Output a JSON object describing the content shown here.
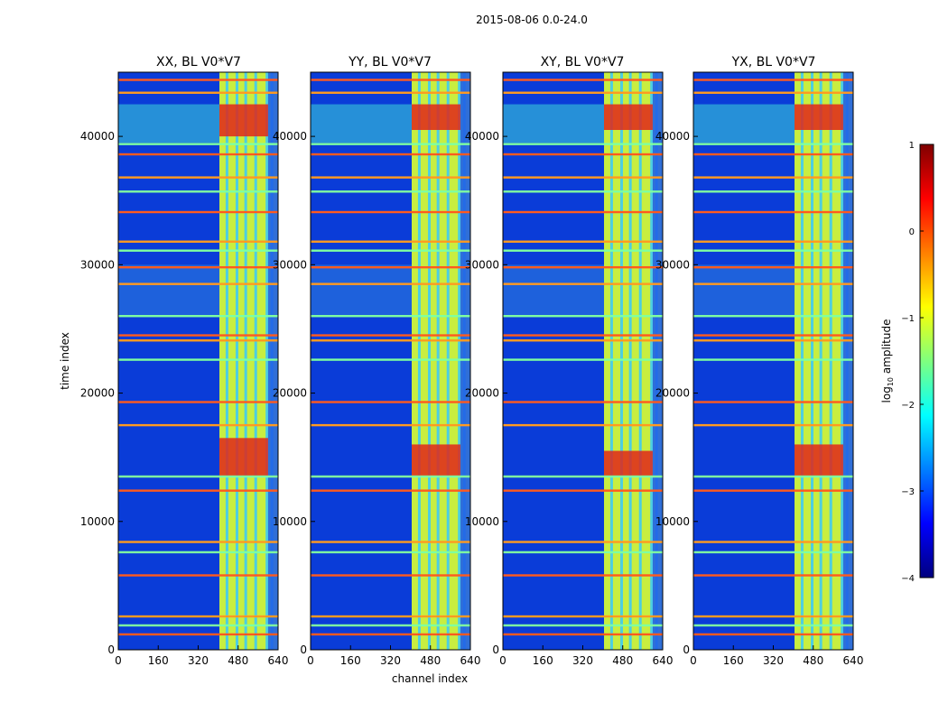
{
  "figure": {
    "suptitle": "2015-08-06 0.0-24.0",
    "xlabel": "channel index",
    "ylabel": "time index"
  },
  "chart_data": [
    {
      "type": "heatmap",
      "title": "XX, BL V0*V7",
      "xlim": [
        0,
        640
      ],
      "ylim": [
        0,
        45000
      ],
      "xticks": [
        0,
        160,
        320,
        480,
        640
      ],
      "yticks": [
        0,
        10000,
        20000,
        30000,
        40000
      ],
      "high_band_x": [
        405,
        640
      ],
      "hot_spots": [
        {
          "x0": 405,
          "x1": 600,
          "y0": 13500,
          "y1": 16500
        },
        {
          "x0": 405,
          "x1": 600,
          "y0": 40000,
          "y1": 42500
        }
      ]
    },
    {
      "type": "heatmap",
      "title": "YY, BL V0*V7",
      "xlim": [
        0,
        640
      ],
      "ylim": [
        0,
        45000
      ],
      "xticks": [
        0,
        160,
        320,
        480,
        640
      ],
      "yticks": [
        0,
        10000,
        20000,
        30000,
        40000
      ],
      "high_band_x": [
        405,
        640
      ],
      "hot_spots": [
        {
          "x0": 405,
          "x1": 600,
          "y0": 13500,
          "y1": 16000
        },
        {
          "x0": 405,
          "x1": 600,
          "y0": 40500,
          "y1": 42500
        }
      ]
    },
    {
      "type": "heatmap",
      "title": "XY, BL V0*V7",
      "xlim": [
        0,
        640
      ],
      "ylim": [
        0,
        45000
      ],
      "xticks": [
        0,
        160,
        320,
        480,
        640
      ],
      "yticks": [
        0,
        10000,
        20000,
        30000,
        40000
      ],
      "high_band_x": [
        405,
        640
      ],
      "hot_spots": [
        {
          "x0": 405,
          "x1": 600,
          "y0": 13500,
          "y1": 15500
        },
        {
          "x0": 405,
          "x1": 600,
          "y0": 40500,
          "y1": 42500
        }
      ]
    },
    {
      "type": "heatmap",
      "title": "YX, BL V0*V7",
      "xlim": [
        0,
        640
      ],
      "ylim": [
        0,
        45000
      ],
      "xticks": [
        0,
        160,
        320,
        480,
        640
      ],
      "yticks": [
        0,
        10000,
        20000,
        30000,
        40000
      ],
      "high_band_x": [
        405,
        640
      ],
      "hot_spots": [
        {
          "x0": 405,
          "x1": 600,
          "y0": 13500,
          "y1": 16000
        },
        {
          "x0": 405,
          "x1": 600,
          "y0": 40500,
          "y1": 42500
        }
      ]
    }
  ],
  "colorbar": {
    "label_prefix": "log",
    "label_sub": "10",
    "label_suffix": " amplitude",
    "range": [
      -4,
      1
    ],
    "ticks": [
      "1",
      "0",
      "−1",
      "−2",
      "−3",
      "−4"
    ],
    "colormap": [
      "#00007f",
      "#0000ff",
      "#007fff",
      "#00ffff",
      "#7fff7f",
      "#ffff00",
      "#ff7f00",
      "#ff0000",
      "#7f0000"
    ]
  },
  "horizontal_lines_y": [
    1200,
    1900,
    2600,
    5800,
    7600,
    8400,
    12400,
    13500,
    17500,
    19300,
    22600,
    24100,
    24500,
    26000,
    28500,
    29800,
    31100,
    31800,
    34100,
    35700,
    36800,
    38600,
    39400,
    43400,
    44400
  ]
}
